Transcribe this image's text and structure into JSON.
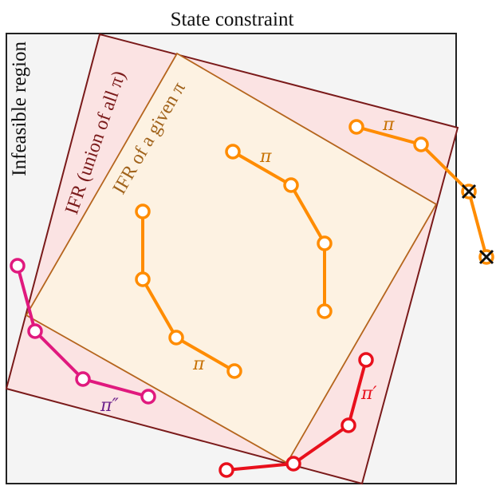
{
  "title": "State constraint",
  "infeasible_label": "Infeasible region",
  "ifr_union_label": "IFR (union of all π)",
  "ifr_given_label": "IFR of a given π",
  "policy_labels": {
    "pi_top_right": "π",
    "pi_center": "π",
    "pi_lower": "π",
    "pi_prime": "π′",
    "pi_double_prime": "π″"
  },
  "colors": {
    "frame": "#222222",
    "infeasible_fill": "#f4f4f4",
    "ifr_union_stroke": "#7a1a1a",
    "ifr_union_fill": "#fbe3e3",
    "ifr_given_stroke": "#b5651d",
    "ifr_given_fill": "#fdf2e2",
    "orange": "#ff8c00",
    "red": "#e8101c",
    "magenta": "#e0197e",
    "ifr_union_text": "#7a1a1a",
    "ifr_given_text": "#a0621a",
    "pi_double_prime_text": "#6a1f8a"
  },
  "violation_marker_icon": "x-mark-icon"
}
